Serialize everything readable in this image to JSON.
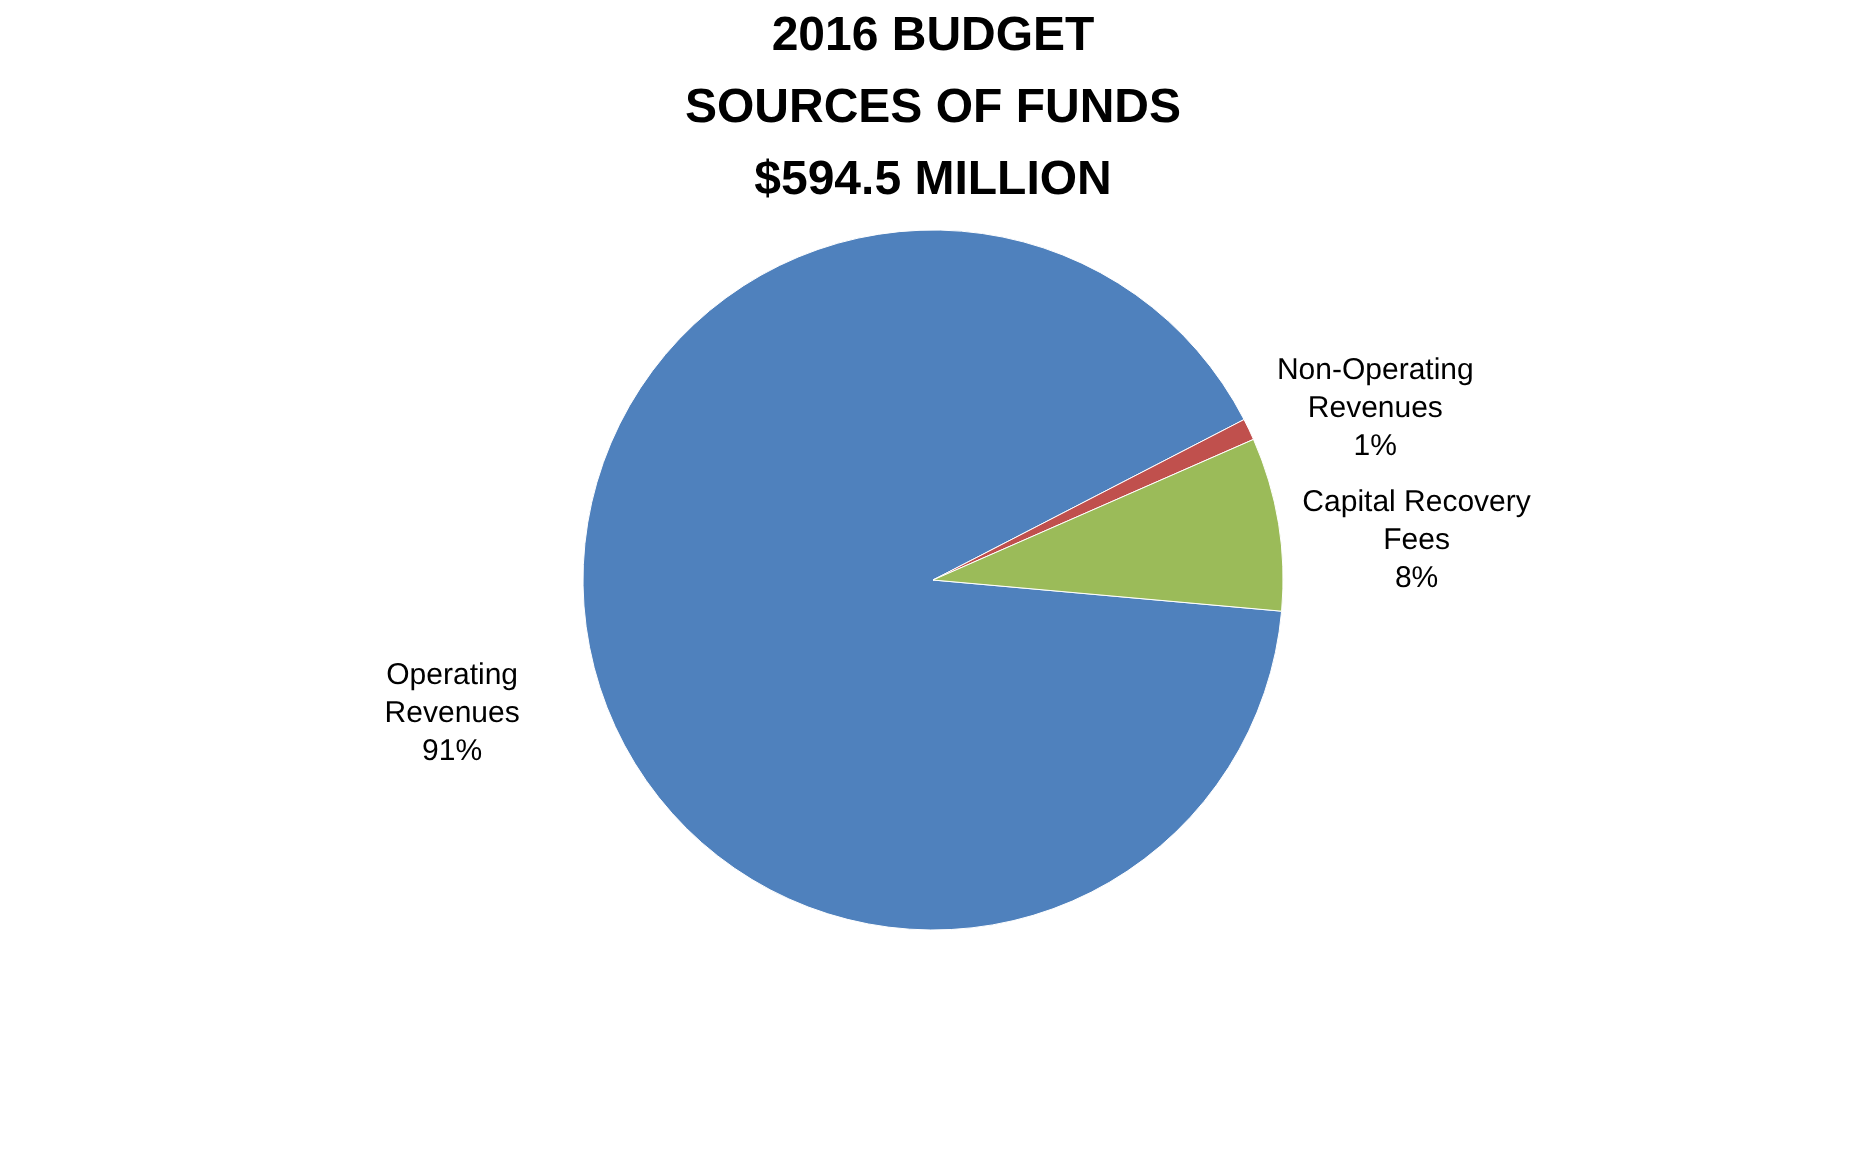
{
  "chart_data": {
    "type": "pie",
    "title": [
      "2016 BUDGET",
      "SOURCES OF FUNDS",
      "$594.5 MILLION"
    ],
    "categories": [
      "Operating Revenues",
      "Non-Operating Revenues",
      "Capital Recovery Fees"
    ],
    "values": [
      91,
      1,
      8
    ],
    "colors": [
      "#4f81bd",
      "#c0504d",
      "#9bbb59"
    ],
    "value_labels": [
      "91%",
      "1%",
      "8%"
    ],
    "legend": false
  }
}
